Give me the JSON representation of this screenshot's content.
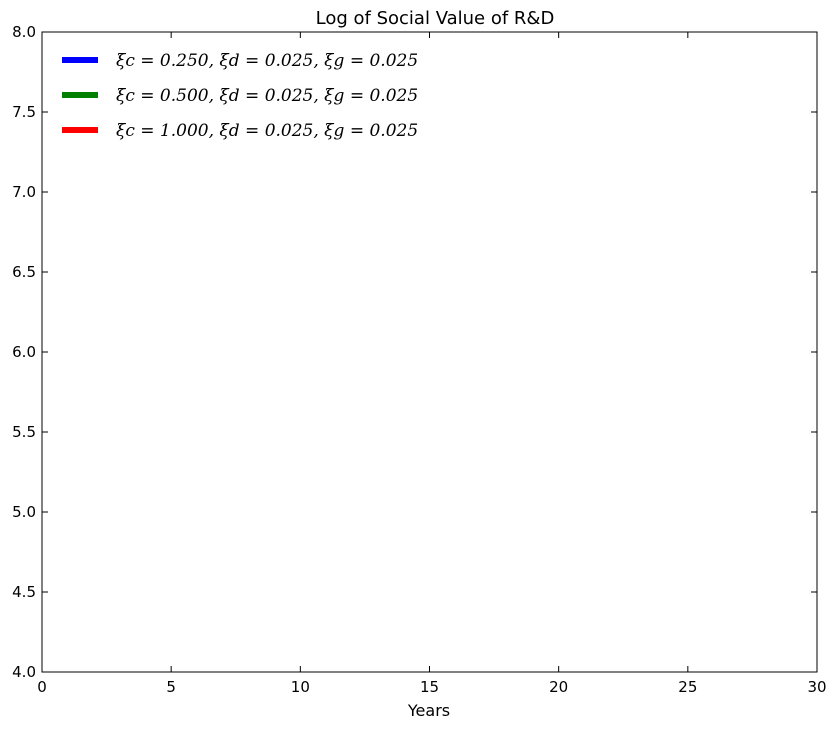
{
  "chart_data": {
    "type": "line",
    "title": "Log of Social Value of R&D",
    "xlabel": "Years",
    "ylabel": "",
    "xlim": [
      0,
      30
    ],
    "ylim": [
      4.0,
      8.0
    ],
    "x_ticks": [
      0,
      5,
      10,
      15,
      20,
      25,
      30
    ],
    "y_ticks": [
      4.0,
      4.5,
      5.0,
      5.5,
      6.0,
      6.5,
      7.0,
      7.5,
      8.0
    ],
    "x_tick_labels": [
      "0",
      "5",
      "10",
      "15",
      "20",
      "25",
      "30"
    ],
    "y_tick_labels": [
      "4.0",
      "4.5",
      "5.0",
      "5.5",
      "6.0",
      "6.5",
      "7.0",
      "7.5",
      "8.0"
    ],
    "grid": false,
    "legend_position": "top-left",
    "series": [
      {
        "name": "ξc = 0.250, ξd = 0.025, ξg = 0.025",
        "color": "#0000ff",
        "x": [],
        "y": []
      },
      {
        "name": "ξc = 0.500, ξd = 0.025, ξg = 0.025",
        "color": "#008000",
        "x": [],
        "y": []
      },
      {
        "name": "ξc = 1.000, ξd = 0.025, ξg = 0.025",
        "color": "#ff0000",
        "x": [],
        "y": []
      }
    ]
  }
}
